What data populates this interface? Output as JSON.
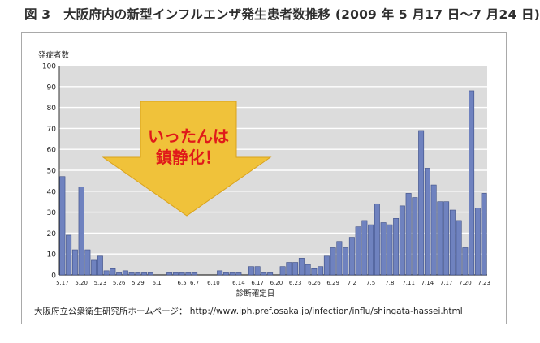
{
  "figure_title": "図 3　大阪府内の新型インフルエンザ発生患者数推移 (2009 年 5 月17 日～7 月24 日)",
  "source_note": "大阪府立公衆衛生研究所ホームページ： http://www.iph.pref.osaka.jp/infection/influ/shingata-hassei.html",
  "callout": {
    "line1": "いったんは",
    "line2": "鎮静化！"
  },
  "colors": {
    "bar": "#6f82bf",
    "bar_stroke": "#3e4f86",
    "plot_bg": "#dcdcdc",
    "grid": "#ffffff",
    "arrow": "#f0c23a",
    "callout_text": "#e01a1a"
  },
  "chart_data": {
    "type": "bar",
    "ylabel": "発症者数",
    "xlabel": "診断確定日",
    "ylim": [
      0,
      100
    ],
    "yticks": [
      0,
      10,
      20,
      30,
      40,
      50,
      60,
      70,
      80,
      90,
      100
    ],
    "grid": true,
    "x_tick_labels": [
      {
        "i": 0,
        "label": "5.17"
      },
      {
        "i": 3,
        "label": "5.20"
      },
      {
        "i": 6,
        "label": "5.23"
      },
      {
        "i": 9,
        "label": "5.26"
      },
      {
        "i": 12,
        "label": "5.29"
      },
      {
        "i": 15,
        "label": "6.1"
      },
      {
        "i": 19,
        "label": "6.5"
      },
      {
        "i": 21,
        "label": "6.7"
      },
      {
        "i": 24,
        "label": "6.10"
      },
      {
        "i": 28,
        "label": "6.14"
      },
      {
        "i": 31,
        "label": "6.17"
      },
      {
        "i": 34,
        "label": "6.20"
      },
      {
        "i": 37,
        "label": "6.23"
      },
      {
        "i": 40,
        "label": "6.26"
      },
      {
        "i": 43,
        "label": "6.29"
      },
      {
        "i": 46,
        "label": "7.2"
      },
      {
        "i": 49,
        "label": "7.5"
      },
      {
        "i": 52,
        "label": "7.8"
      },
      {
        "i": 55,
        "label": "7.11"
      },
      {
        "i": 58,
        "label": "7.14"
      },
      {
        "i": 61,
        "label": "7.17"
      },
      {
        "i": 64,
        "label": "7.20"
      },
      {
        "i": 67,
        "label": "7.23"
      }
    ],
    "values": [
      47,
      19,
      12,
      42,
      12,
      7,
      9,
      2,
      3,
      1,
      2,
      1,
      1,
      1,
      1,
      0,
      0,
      1,
      1,
      1,
      1,
      1,
      0,
      0,
      0,
      2,
      1,
      1,
      1,
      0,
      4,
      4,
      1,
      1,
      0,
      4,
      6,
      6,
      8,
      5,
      3,
      4,
      9,
      13,
      16,
      13,
      18,
      23,
      26,
      24,
      34,
      25,
      24,
      27,
      33,
      39,
      37,
      69,
      51,
      43,
      35,
      35,
      31,
      26,
      13,
      88,
      32,
      39
    ]
  }
}
